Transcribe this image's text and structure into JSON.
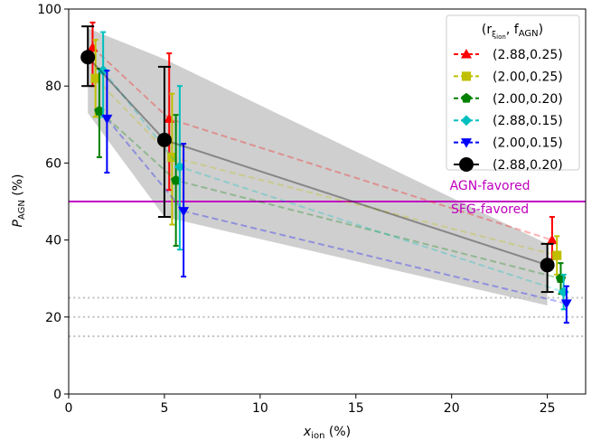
{
  "chart_data": {
    "type": "scatter",
    "title": "",
    "xlabel": {
      "main": "x",
      "sub": "ion",
      "unit": " (%)"
    },
    "ylabel": {
      "main": "P",
      "sub": "AGN",
      "unit": " (%)"
    },
    "xlim": [
      0,
      27
    ],
    "ylim": [
      0,
      100
    ],
    "xticks": [
      0,
      5,
      10,
      15,
      20,
      25
    ],
    "yticks": [
      0,
      20,
      40,
      60,
      80,
      100
    ],
    "grid": false,
    "legend": {
      "placement": "top-right",
      "title": "(r_ξion, f_AGN)",
      "title_parts": {
        "open": "(r",
        "sub1": "ξ",
        "sub2": "ion",
        "mid": ", f",
        "sub3": "AGN",
        "close": ")"
      }
    },
    "series": [
      {
        "name": "(2.88,0.25)",
        "color": "#ff0000",
        "marker": "triangle-up",
        "x": [
          1.25,
          5.25,
          25.25
        ],
        "y": [
          90,
          71.5,
          40
        ],
        "yerr_low": [
          80,
          53,
          35
        ],
        "yerr_high": [
          96.5,
          88.5,
          46
        ]
      },
      {
        "name": "(2.00,0.25)",
        "color": "#bfbf00",
        "marker": "square",
        "x": [
          1.4,
          5.4,
          25.5
        ],
        "y": [
          82,
          61.5,
          36
        ],
        "yerr_low": [
          72,
          44,
          31
        ],
        "yerr_high": [
          92,
          78,
          41
        ]
      },
      {
        "name": "(2.00,0.20)",
        "color": "#008000",
        "marker": "pentagon",
        "x": [
          1.6,
          5.6,
          25.7
        ],
        "y": [
          73.5,
          55.5,
          30
        ],
        "yerr_low": [
          61.5,
          38.5,
          26
        ],
        "yerr_high": [
          84.5,
          72.5,
          34
        ]
      },
      {
        "name": "(2.88,0.15)",
        "color": "#00bfbf",
        "marker": "diamond",
        "x": [
          1.8,
          5.8,
          25.85
        ],
        "y": [
          84,
          59,
          26.5
        ],
        "yerr_low": [
          72,
          37.5,
          22
        ],
        "yerr_high": [
          94,
          80,
          31
        ]
      },
      {
        "name": "(2.00,0.15)",
        "color": "#0000ff",
        "marker": "triangle-down",
        "x": [
          2.0,
          6.0,
          26.0
        ],
        "y": [
          71.5,
          47.5,
          23.5
        ],
        "yerr_low": [
          57.5,
          30.5,
          18.5
        ],
        "yerr_high": [
          84,
          65,
          28
        ]
      },
      {
        "name": "(2.88,0.20)",
        "color": "#000000",
        "marker": "circle",
        "x": [
          1.0,
          5.0,
          25.0
        ],
        "y": [
          87.5,
          66,
          33.5
        ],
        "yerr_low": [
          80,
          46,
          26.5
        ],
        "yerr_high": [
          95.5,
          85,
          39
        ]
      }
    ],
    "band": {
      "color": "#bfbfbf",
      "x": [
        1.0,
        5.0,
        25.0
      ],
      "upper": [
        95,
        87,
        39
      ],
      "lower": [
        73,
        46,
        23
      ]
    },
    "hlines": [
      {
        "y": 50,
        "color": "#bf00bf",
        "style": "solid"
      },
      {
        "y": 25,
        "color": "#bfbfbf",
        "style": "dotted"
      },
      {
        "y": 20,
        "color": "#bfbfbf",
        "style": "dotted"
      },
      {
        "y": 15,
        "color": "#bfbfbf",
        "style": "dotted"
      }
    ],
    "annotations": [
      {
        "text": "AGN-favored",
        "color": "#bf00bf",
        "x": 22,
        "y": 53
      },
      {
        "text": "SFG-favored",
        "color": "#bf00bf",
        "x": 22,
        "y": 47
      }
    ]
  }
}
